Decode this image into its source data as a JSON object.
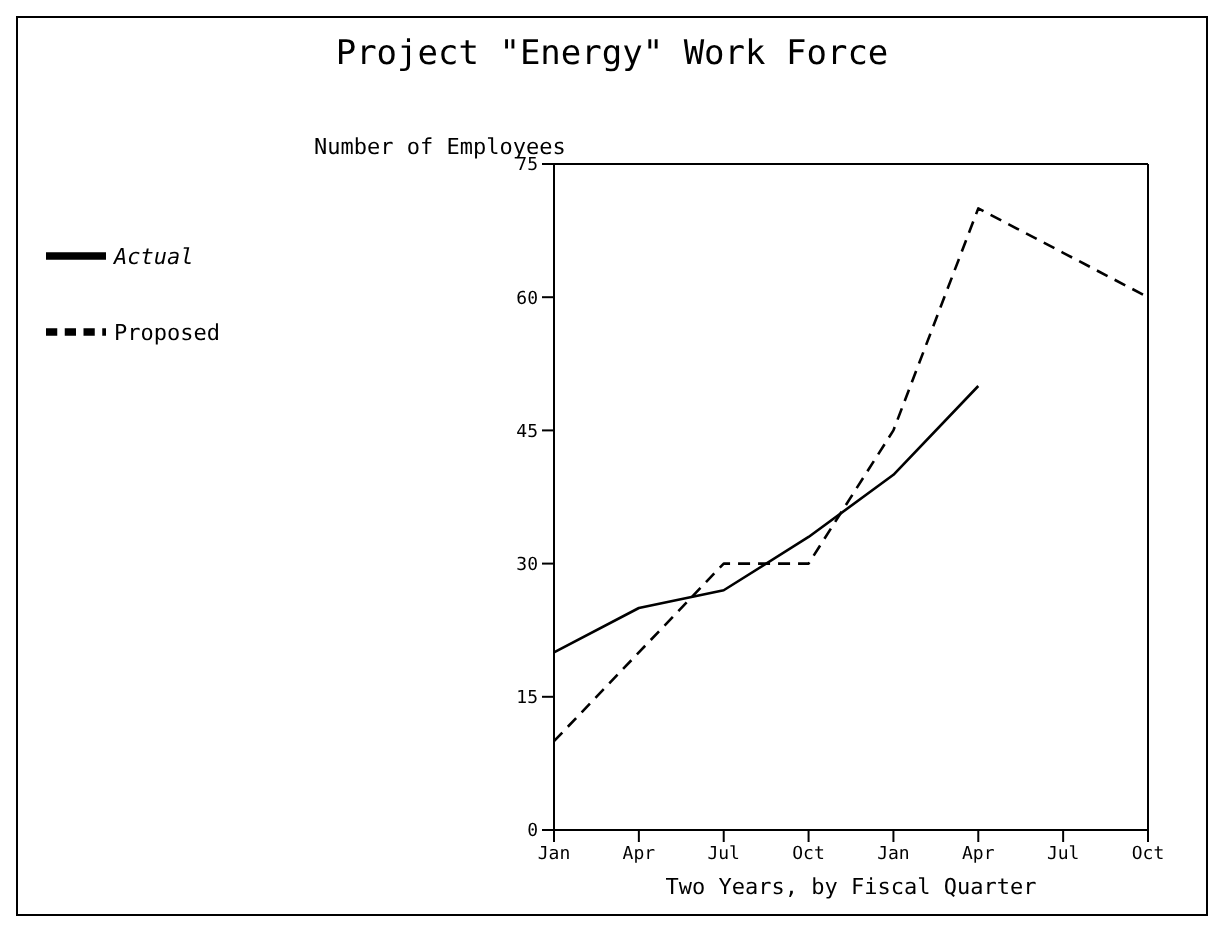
{
  "chart_data": {
    "type": "line",
    "title": "Project \"Energy\" Work Force",
    "xlabel": "Two Years, by Fiscal Quarter",
    "ylabel": "Number of Employees",
    "categories": [
      "Jan",
      "Apr",
      "Jul",
      "Oct",
      "Jan",
      "Apr",
      "Jul",
      "Oct"
    ],
    "series": [
      {
        "name": "Proposed",
        "color": "#000000",
        "line_style": "dashed",
        "values": [
          10,
          20,
          30,
          30,
          45,
          70,
          65,
          60
        ]
      },
      {
        "name": "Actual",
        "color": "#000000",
        "line_style": "solid",
        "values": [
          20,
          25,
          27,
          33,
          40,
          50,
          null,
          null
        ]
      }
    ],
    "ylim": [
      0,
      75
    ],
    "yticks": [
      0,
      15,
      30,
      45,
      60,
      75
    ],
    "legend": "left",
    "marker": "none",
    "grid": false
  }
}
